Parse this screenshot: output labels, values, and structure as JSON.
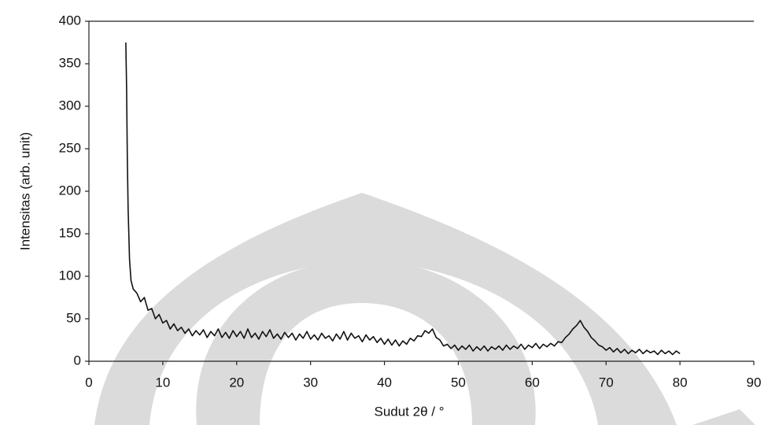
{
  "chart_data": {
    "type": "line",
    "x_label": "Sudut 2θ / °",
    "y_label": "Intensitas (arb. unit)",
    "color": "#111111",
    "xlim": [
      0,
      90
    ],
    "xticks": [
      0,
      10,
      20,
      30,
      40,
      50,
      60,
      70,
      80,
      90
    ],
    "ylim": [
      0,
      400
    ],
    "yticks": [
      0,
      50,
      100,
      150,
      200,
      250,
      300,
      350,
      400
    ],
    "grid": false,
    "x": [
      5,
      5.1,
      5.2,
      5.3,
      5.5,
      5.7,
      6,
      6.5,
      7,
      7.5,
      8,
      8.5,
      9,
      9.5,
      10,
      10.5,
      11,
      11.5,
      12,
      12.5,
      13,
      13.5,
      14,
      14.5,
      15,
      15.5,
      16,
      16.5,
      17,
      17.5,
      18,
      18.5,
      19,
      19.5,
      20,
      20.5,
      21,
      21.5,
      22,
      22.5,
      23,
      23.5,
      24,
      24.5,
      25,
      25.5,
      26,
      26.5,
      27,
      27.5,
      28,
      28.5,
      29,
      29.5,
      30,
      30.5,
      31,
      31.5,
      32,
      32.5,
      33,
      33.5,
      34,
      34.5,
      35,
      35.5,
      36,
      36.5,
      37,
      37.5,
      38,
      38.5,
      39,
      39.5,
      40,
      40.5,
      41,
      41.5,
      42,
      42.5,
      43,
      43.5,
      44,
      44.5,
      45,
      45.5,
      46,
      46.5,
      47,
      47.5,
      48,
      48.5,
      49,
      49.5,
      50,
      50.5,
      51,
      51.5,
      52,
      52.5,
      53,
      53.5,
      54,
      54.5,
      55,
      55.5,
      56,
      56.5,
      57,
      57.5,
      58,
      58.5,
      59,
      59.5,
      60,
      60.5,
      61,
      61.5,
      62,
      62.5,
      63,
      63.5,
      64,
      64.5,
      65,
      65.5,
      66,
      66.5,
      67,
      67.5,
      68,
      68.5,
      69,
      69.5,
      70,
      70.5,
      71,
      71.5,
      72,
      72.5,
      73,
      73.5,
      74,
      74.5,
      75,
      75.5,
      76,
      76.5,
      77,
      77.5,
      78,
      78.5,
      79,
      79.5,
      80
    ],
    "values": [
      375,
      320,
      240,
      180,
      120,
      95,
      85,
      80,
      70,
      75,
      60,
      62,
      50,
      55,
      45,
      48,
      38,
      44,
      36,
      40,
      33,
      38,
      30,
      36,
      31,
      37,
      28,
      35,
      30,
      38,
      28,
      34,
      27,
      36,
      29,
      35,
      27,
      38,
      28,
      33,
      26,
      35,
      29,
      37,
      27,
      32,
      26,
      34,
      28,
      33,
      25,
      32,
      27,
      35,
      26,
      31,
      25,
      33,
      27,
      30,
      24,
      32,
      26,
      35,
      25,
      33,
      27,
      30,
      23,
      31,
      25,
      29,
      22,
      27,
      20,
      26,
      19,
      25,
      18,
      24,
      20,
      27,
      24,
      30,
      29,
      36,
      33,
      38,
      28,
      25,
      18,
      20,
      15,
      19,
      13,
      18,
      14,
      19,
      12,
      17,
      13,
      18,
      12,
      17,
      14,
      18,
      13,
      19,
      14,
      18,
      15,
      20,
      14,
      19,
      16,
      21,
      15,
      20,
      17,
      21,
      18,
      23,
      22,
      28,
      32,
      38,
      42,
      48,
      40,
      35,
      28,
      24,
      19,
      17,
      13,
      16,
      11,
      15,
      10,
      14,
      9,
      13,
      10,
      14,
      9,
      13,
      10,
      12,
      8,
      13,
      9,
      12,
      8,
      12,
      9
    ]
  }
}
